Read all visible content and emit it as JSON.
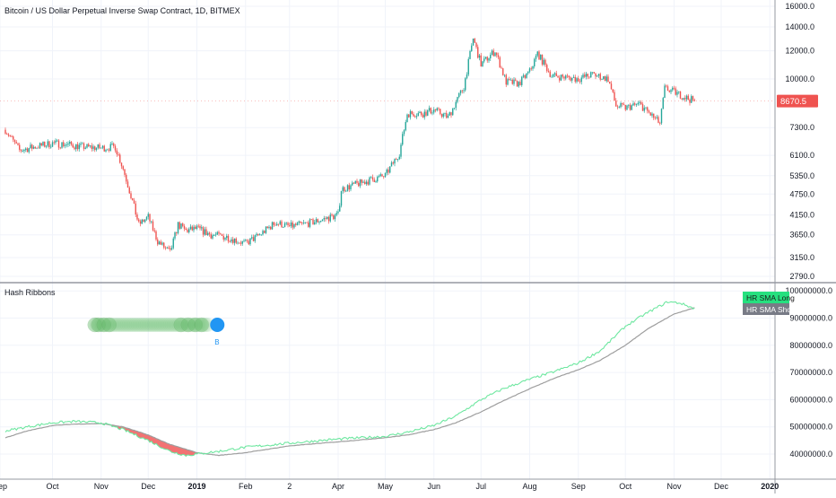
{
  "header": {
    "title": "Bitcoin / US Dollar Perpetual Inverse Swap Contract, 1D, BITMEX"
  },
  "indicator": {
    "title": "Hash Ribbons",
    "buy_marker": "B"
  },
  "price_badge": {
    "value": "8670.5",
    "color": "#ef5350"
  },
  "legend": {
    "long": {
      "label": "HR SMA Long",
      "color": "#26e07f"
    },
    "short": {
      "label": "HR SMA Short",
      "color": "#787b86"
    }
  },
  "colors": {
    "up": "#26a69a",
    "down": "#ef5350",
    "hash_long": "#6ee7a0",
    "hash_short": "#9e9e9e",
    "fill_capitulation": "#f05b5b",
    "buy_dot": "#2196f3",
    "dot_green": "#66bb6a"
  },
  "chart_data": [
    {
      "type": "candlestick",
      "title": "Bitcoin / US Dollar Perpetual Inverse Swap Contract, 1D, BITMEX",
      "y_scale": "log",
      "y_ticks": [
        16000,
        14000,
        12000,
        10000,
        7300,
        6100,
        5350,
        4750,
        4150,
        3650,
        3150,
        2790
      ],
      "y_tick_labels": [
        "16000.0",
        "14000.0",
        "12000.0",
        "10000.0",
        "7300.0",
        "6100.0",
        "5350.0",
        "4750.0",
        "4150.0",
        "3650.0",
        "3150.0",
        "2790.0"
      ],
      "last_price": 8670.5,
      "x_labels": [
        "Sep",
        "Oct",
        "Nov",
        "Dec",
        "2019",
        "Feb",
        "2",
        "Apr",
        "May",
        "Jun",
        "Jul",
        "Aug",
        "Sep",
        "Oct",
        "Nov",
        "Dec",
        "2020"
      ],
      "close_path": [
        [
          "2018-09-01",
          7200
        ],
        [
          "2018-09-10",
          6300
        ],
        [
          "2018-09-20",
          6450
        ],
        [
          "2018-10-01",
          6600
        ],
        [
          "2018-10-10",
          6550
        ],
        [
          "2018-10-20",
          6450
        ],
        [
          "2018-11-01",
          6400
        ],
        [
          "2018-11-10",
          6450
        ],
        [
          "2018-11-15",
          5600
        ],
        [
          "2018-11-20",
          4700
        ],
        [
          "2018-11-25",
          3900
        ],
        [
          "2018-12-01",
          4100
        ],
        [
          "2018-12-07",
          3500
        ],
        [
          "2018-12-15",
          3250
        ],
        [
          "2018-12-20",
          3900
        ],
        [
          "2018-12-25",
          3750
        ],
        [
          "2019-01-01",
          3800
        ],
        [
          "2019-01-10",
          3650
        ],
        [
          "2019-01-20",
          3600
        ],
        [
          "2019-02-01",
          3450
        ],
        [
          "2019-02-10",
          3650
        ],
        [
          "2019-02-20",
          3950
        ],
        [
          "2019-03-01",
          3850
        ],
        [
          "2019-03-15",
          3950
        ],
        [
          "2019-04-01",
          4150
        ],
        [
          "2019-04-03",
          4900
        ],
        [
          "2019-04-15",
          5100
        ],
        [
          "2019-05-01",
          5350
        ],
        [
          "2019-05-10",
          6200
        ],
        [
          "2019-05-15",
          8000
        ],
        [
          "2019-05-25",
          8000
        ],
        [
          "2019-06-01",
          8200
        ],
        [
          "2019-06-10",
          7800
        ],
        [
          "2019-06-20",
          9500
        ],
        [
          "2019-06-26",
          13000
        ],
        [
          "2019-07-01",
          11000
        ],
        [
          "2019-07-10",
          12000
        ],
        [
          "2019-07-17",
          9800
        ],
        [
          "2019-07-25",
          9700
        ],
        [
          "2019-08-01",
          10500
        ],
        [
          "2019-08-06",
          11800
        ],
        [
          "2019-08-15",
          10200
        ],
        [
          "2019-08-25",
          10100
        ],
        [
          "2019-09-01",
          10000
        ],
        [
          "2019-09-10",
          10300
        ],
        [
          "2019-09-20",
          10000
        ],
        [
          "2019-09-25",
          8400
        ],
        [
          "2019-10-01",
          8300
        ],
        [
          "2019-10-10",
          8500
        ],
        [
          "2019-10-23",
          7500
        ],
        [
          "2019-10-26",
          9400
        ],
        [
          "2019-11-01",
          9200
        ],
        [
          "2019-11-10",
          8800
        ],
        [
          "2019-11-14",
          8670.5
        ]
      ]
    },
    {
      "type": "line",
      "title": "Hash Ribbons",
      "y_ticks": [
        40000000,
        50000000,
        60000000,
        70000000,
        80000000,
        90000000,
        100000000
      ],
      "y_tick_labels": [
        "40000000.0",
        "50000000.0",
        "60000000.0",
        "70000000.0",
        "80000000.0",
        "90000000.0",
        "100000000.0"
      ],
      "series": [
        {
          "name": "HR SMA Long",
          "points": [
            [
              "2018-09-01",
              48500000
            ],
            [
              "2018-09-15",
              50000000
            ],
            [
              "2018-10-01",
              51500000
            ],
            [
              "2018-10-15",
              52000000
            ],
            [
              "2018-11-01",
              51500000
            ],
            [
              "2018-11-15",
              49000000
            ],
            [
              "2018-12-01",
              45000000
            ],
            [
              "2018-12-15",
              41000000
            ],
            [
              "2018-12-25",
              39500000
            ],
            [
              "2019-01-01",
              40000000
            ],
            [
              "2019-01-15",
              41000000
            ],
            [
              "2019-02-01",
              42500000
            ],
            [
              "2019-03-01",
              44000000
            ],
            [
              "2019-04-01",
              45500000
            ],
            [
              "2019-05-01",
              46500000
            ],
            [
              "2019-05-15",
              48000000
            ],
            [
              "2019-06-01",
              50500000
            ],
            [
              "2019-06-15",
              54000000
            ],
            [
              "2019-07-01",
              60000000
            ],
            [
              "2019-07-15",
              64000000
            ],
            [
              "2019-08-01",
              67500000
            ],
            [
              "2019-08-15",
              70000000
            ],
            [
              "2019-09-01",
              73500000
            ],
            [
              "2019-09-15",
              78000000
            ],
            [
              "2019-10-01",
              87000000
            ],
            [
              "2019-10-15",
              92000000
            ],
            [
              "2019-10-28",
              96000000
            ],
            [
              "2019-11-05",
              95500000
            ],
            [
              "2019-11-14",
              93500000
            ]
          ]
        },
        {
          "name": "HR SMA Short",
          "points": [
            [
              "2018-09-01",
              46000000
            ],
            [
              "2018-09-15",
              48500000
            ],
            [
              "2018-10-01",
              50500000
            ],
            [
              "2018-10-15",
              51000000
            ],
            [
              "2018-11-01",
              51200000
            ],
            [
              "2018-11-15",
              50000000
            ],
            [
              "2018-12-01",
              47000000
            ],
            [
              "2018-12-15",
              43500000
            ],
            [
              "2019-01-01",
              40500000
            ],
            [
              "2019-01-15",
              39500000
            ],
            [
              "2019-02-01",
              40500000
            ],
            [
              "2019-03-01",
              43000000
            ],
            [
              "2019-04-01",
              44500000
            ],
            [
              "2019-05-01",
              46000000
            ],
            [
              "2019-05-15",
              47000000
            ],
            [
              "2019-06-01",
              49000000
            ],
            [
              "2019-06-15",
              51500000
            ],
            [
              "2019-07-01",
              55500000
            ],
            [
              "2019-07-15",
              59500000
            ],
            [
              "2019-08-01",
              64000000
            ],
            [
              "2019-08-15",
              67500000
            ],
            [
              "2019-09-01",
              71000000
            ],
            [
              "2019-09-15",
              74500000
            ],
            [
              "2019-10-01",
              80000000
            ],
            [
              "2019-10-15",
              86000000
            ],
            [
              "2019-11-01",
              91500000
            ],
            [
              "2019-11-14",
              93800000
            ]
          ]
        }
      ]
    }
  ]
}
